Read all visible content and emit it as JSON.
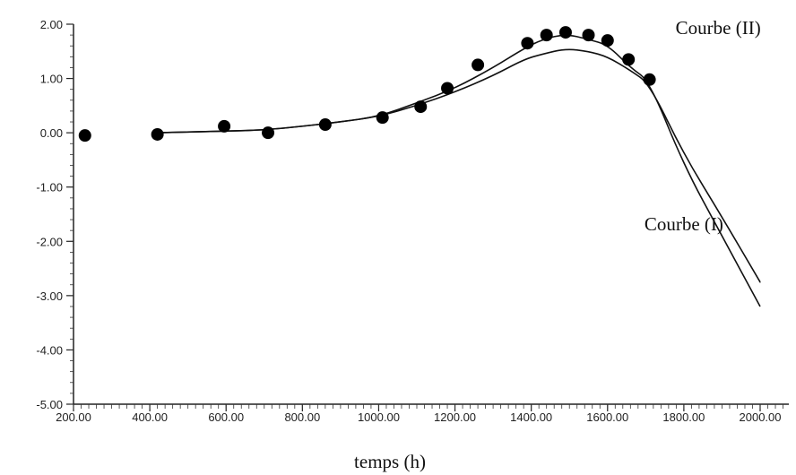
{
  "chart_data": {
    "type": "line",
    "title": "",
    "xlabel": "temps (h)",
    "ylabel": "",
    "xlim": [
      200,
      2000
    ],
    "ylim": [
      -5,
      2
    ],
    "x_ticks": [
      "200.00",
      "400.00",
      "600.00",
      "800.00",
      "1000.00",
      "1200.00",
      "1400.00",
      "1600.00",
      "1800.00",
      "2000.00"
    ],
    "y_ticks": [
      "2.00",
      "1.00",
      "0.00",
      "-1.00",
      "-2.00",
      "-3.00",
      "-4.00",
      "-5.00"
    ],
    "grid": false,
    "series": [
      {
        "name": "Courbe (II)",
        "style": "line",
        "color": "#111111",
        "x": [
          420,
          600,
          700,
          800,
          900,
          1000,
          1100,
          1200,
          1300,
          1380,
          1430,
          1490,
          1550,
          1600,
          1660,
          1710,
          1800,
          1900,
          2000
        ],
        "y": [
          0.0,
          0.03,
          0.05,
          0.12,
          0.2,
          0.3,
          0.55,
          0.82,
          1.2,
          1.55,
          1.72,
          1.82,
          1.72,
          1.62,
          1.2,
          0.95,
          -0.6,
          -1.9,
          -3.2
        ]
      },
      {
        "name": "Courbe (I)",
        "style": "line",
        "color": "#111111",
        "x": [
          420,
          600,
          700,
          800,
          900,
          1000,
          1100,
          1200,
          1300,
          1380,
          1430,
          1490,
          1550,
          1600,
          1660,
          1710,
          1800,
          1900,
          2000
        ],
        "y": [
          0.0,
          0.03,
          0.05,
          0.12,
          0.2,
          0.3,
          0.5,
          0.75,
          1.05,
          1.35,
          1.45,
          1.55,
          1.5,
          1.4,
          1.15,
          0.9,
          -0.4,
          -1.55,
          -2.75
        ]
      },
      {
        "name": "",
        "style": "markers",
        "color": "#000000",
        "x": [
          230,
          420,
          595,
          710,
          860,
          1010,
          1110,
          1180,
          1260,
          1390,
          1440,
          1490,
          1550,
          1600,
          1655,
          1710
        ],
        "y": [
          -0.05,
          -0.03,
          0.12,
          0.0,
          0.15,
          0.28,
          0.48,
          0.82,
          1.25,
          1.65,
          1.8,
          1.85,
          1.8,
          1.7,
          1.35,
          0.98
        ]
      }
    ],
    "annotations": [
      {
        "text": "Courbe (II)",
        "x": 1890,
        "y": 1.82
      },
      {
        "text": "Courbe (I)",
        "x": 1800,
        "y": -1.8
      }
    ]
  }
}
